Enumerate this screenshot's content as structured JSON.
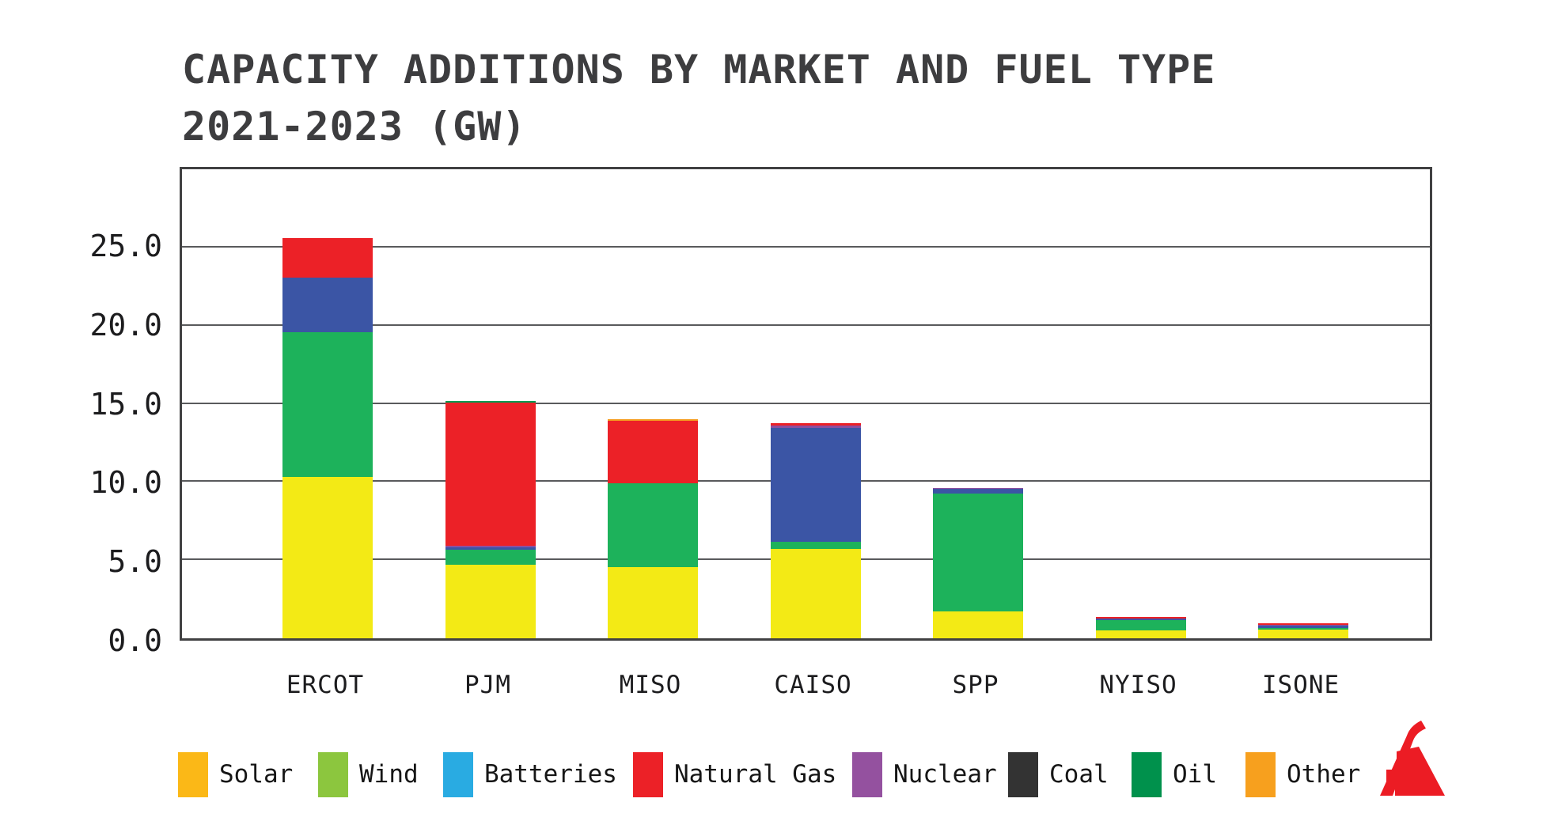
{
  "title": {
    "line1": "CAPACITY ADDITIONS BY MARKET AND FUEL TYPE",
    "line2": "2021-2023 (GW)",
    "color": "#3d3d3f"
  },
  "chart_data": {
    "type": "bar",
    "stacked": true,
    "title": "CAPACITY ADDITIONS BY MARKET AND FUEL TYPE 2021-2023 (GW)",
    "unit": "GW",
    "categories": [
      "ERCOT",
      "PJM",
      "MISO",
      "CAISO",
      "SPP",
      "NYISO",
      "ISONE"
    ],
    "series": [
      {
        "name": "Solar",
        "bar_color": "#f3ea15",
        "values": [
          10.3,
          4.7,
          4.55,
          5.7,
          1.7,
          0.5,
          0.55
        ]
      },
      {
        "name": "Wind",
        "bar_color": "#1db25b",
        "values": [
          9.3,
          0.95,
          5.35,
          0.45,
          7.55,
          0.65,
          0.1
        ]
      },
      {
        "name": "Batteries",
        "bar_color": "#3b55a5",
        "values": [
          3.45,
          0.15,
          0,
          7.3,
          0.3,
          0.1,
          0.15
        ]
      },
      {
        "name": "Nuclear",
        "bar_color": "#8c4fa0",
        "values": [
          0,
          0.1,
          0,
          0.15,
          0.05,
          0,
          0.05
        ]
      },
      {
        "name": "Natural Gas",
        "bar_color": "#ec2127",
        "values": [
          2.55,
          9.2,
          4.0,
          0.15,
          0,
          0.1,
          0.1
        ]
      },
      {
        "name": "Coal",
        "bar_color": "#333333",
        "values": [
          0,
          0,
          0,
          0,
          0,
          0,
          0
        ]
      },
      {
        "name": "Oil",
        "bar_color": "#009a50",
        "values": [
          0,
          0.1,
          0,
          0,
          0,
          0,
          0
        ]
      },
      {
        "name": "Other",
        "bar_color": "#f59d1e",
        "values": [
          0,
          0,
          0.1,
          0,
          0,
          0,
          0
        ]
      }
    ],
    "ylim": [
      0,
      30
    ],
    "yticks": [
      0,
      5,
      10,
      15,
      20,
      25
    ],
    "ytick_labels": [
      "0.0",
      "5.0",
      "10.0",
      "15.0",
      "20.0",
      "25.0"
    ],
    "grid": "horizontal",
    "legend_position": "bottom",
    "legend": [
      {
        "label": "Solar",
        "color": "#fbb817"
      },
      {
        "label": "Wind",
        "color": "#8cc63e"
      },
      {
        "label": "Batteries",
        "color": "#29abe2"
      },
      {
        "label": "Natural Gas",
        "color": "#ec2127"
      },
      {
        "label": "Nuclear",
        "color": "#94519f"
      },
      {
        "label": "Coal",
        "color": "#333333"
      },
      {
        "label": "Oil",
        "color": "#00914c"
      },
      {
        "label": "Other",
        "color": "#f7a01e"
      }
    ]
  },
  "logo": {
    "color": "#ec1c24"
  }
}
